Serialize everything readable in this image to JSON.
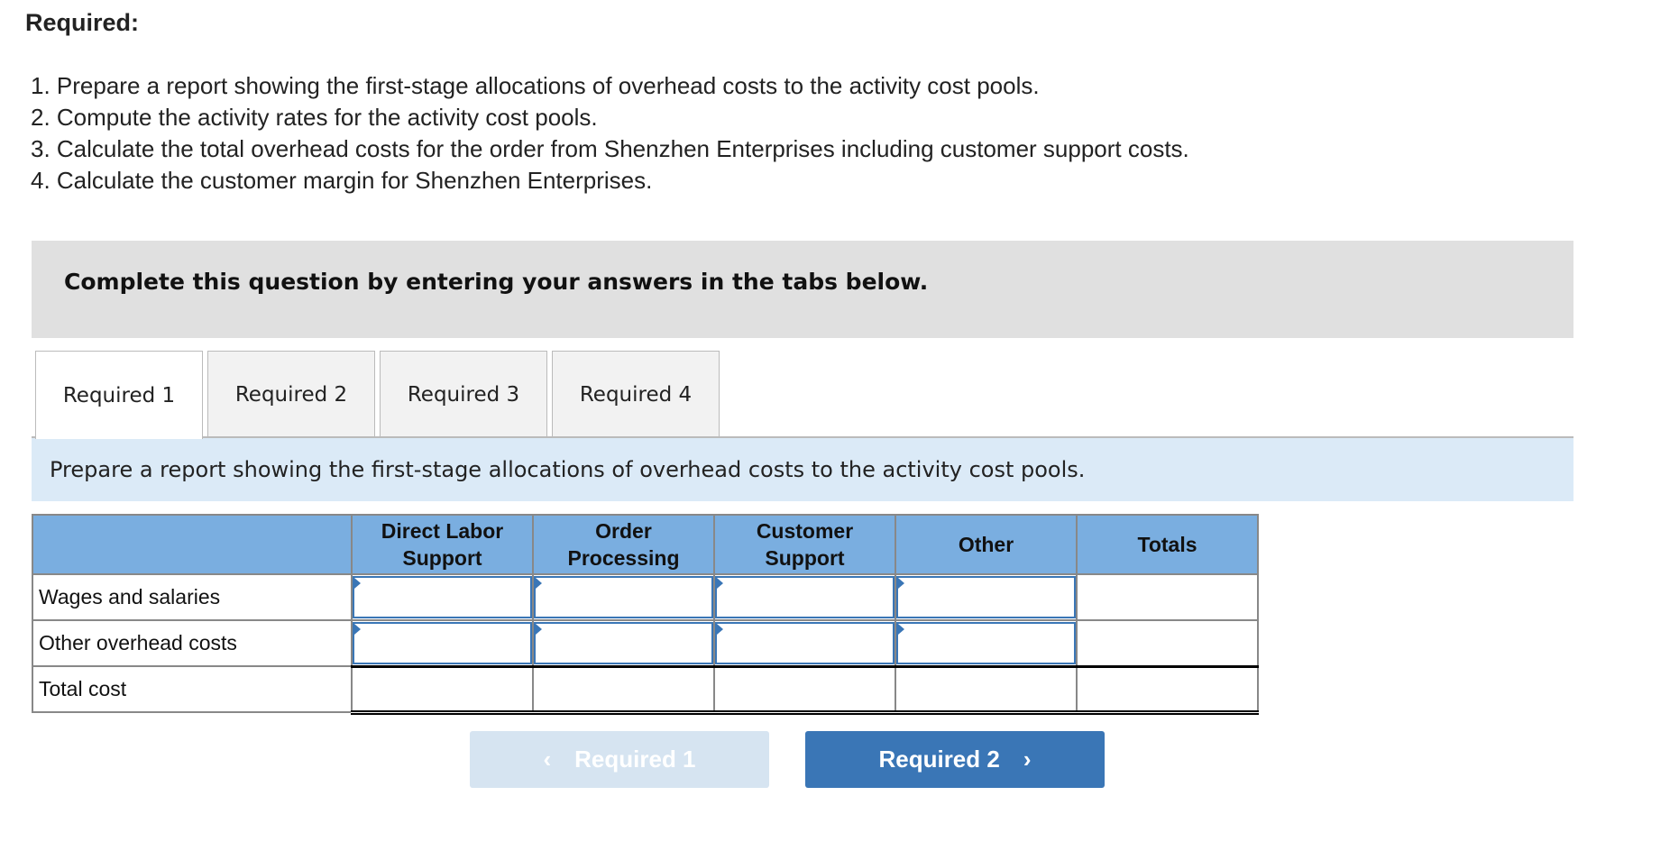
{
  "required_title": "Required:",
  "requirements": [
    "1. Prepare a report showing the first-stage allocations of overhead costs to the activity cost pools.",
    "2. Compute the activity rates for the activity cost pools.",
    "3. Calculate the total overhead costs for the order from Shenzhen Enterprises including customer support costs.",
    "4. Calculate the customer margin for Shenzhen Enterprises."
  ],
  "instruction_box": "Complete this question by entering your answers in the tabs below.",
  "tabs": [
    {
      "label": "Required 1"
    },
    {
      "label": "Required 2"
    },
    {
      "label": "Required 3"
    },
    {
      "label": "Required 4"
    }
  ],
  "active_tab": "Required 1",
  "tab_instruction": "Prepare a report showing the first-stage allocations of overhead costs to the activity cost pools.",
  "table": {
    "headers": [
      [
        "Direct Labor",
        "Support"
      ],
      [
        "Order",
        "Processing"
      ],
      [
        "Customer",
        "Support"
      ],
      [
        "Other"
      ],
      [
        "Totals"
      ]
    ],
    "rows": [
      {
        "label": "Wages and salaries"
      },
      {
        "label": "Other overhead costs"
      },
      {
        "label": "Total cost"
      }
    ]
  },
  "nav": {
    "prev_label": "Required 1",
    "next_label": "Required 2",
    "prev_icon": "chevron-left-icon",
    "next_icon": "chevron-right-icon"
  },
  "colors": {
    "header_blue": "#7aaee0",
    "button_blue": "#3a76b6",
    "instruction_bg": "#dbeaf7"
  }
}
